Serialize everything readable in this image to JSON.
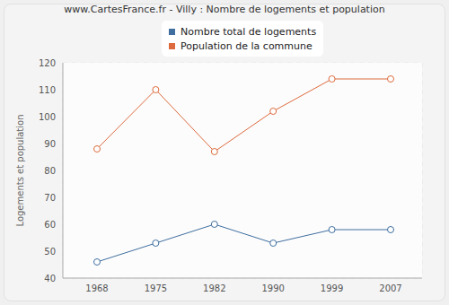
{
  "chart_data": {
    "type": "line",
    "title": "www.CartesFrance.fr - Villy : Nombre de logements et population",
    "y_label": "Logements et population",
    "categories": [
      "1968",
      "1975",
      "1982",
      "1990",
      "1999",
      "2007"
    ],
    "series": [
      {
        "name": "Nombre total de logements",
        "color": "#3f6e9f",
        "values": [
          46,
          53,
          60,
          53,
          58,
          58
        ]
      },
      {
        "name": "Population de la commune",
        "color": "#dd6a3c",
        "values": [
          88,
          110,
          87,
          102,
          114,
          114
        ]
      }
    ],
    "ylim": [
      40,
      120
    ],
    "yticks": [
      40,
      50,
      60,
      70,
      80,
      90,
      100,
      110,
      120
    ],
    "grid": true,
    "legend": "top",
    "marker": "circle"
  }
}
